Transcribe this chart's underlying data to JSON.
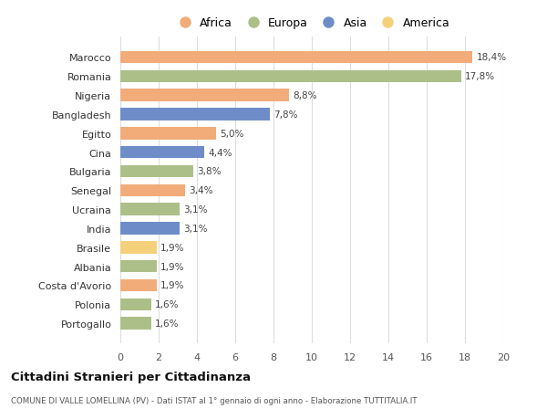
{
  "countries": [
    "Portogallo",
    "Polonia",
    "Costa d'Avorio",
    "Albania",
    "Brasile",
    "India",
    "Ucraina",
    "Senegal",
    "Bulgaria",
    "Cina",
    "Egitto",
    "Bangladesh",
    "Nigeria",
    "Romania",
    "Marocco"
  ],
  "values": [
    1.6,
    1.6,
    1.9,
    1.9,
    1.9,
    3.1,
    3.1,
    3.4,
    3.8,
    4.4,
    5.0,
    7.8,
    8.8,
    17.8,
    18.4
  ],
  "labels": [
    "1,6%",
    "1,6%",
    "1,9%",
    "1,9%",
    "1,9%",
    "3,1%",
    "3,1%",
    "3,4%",
    "3,8%",
    "4,4%",
    "5,0%",
    "7,8%",
    "8,8%",
    "17,8%",
    "18,4%"
  ],
  "continents": [
    "Europa",
    "Europa",
    "Africa",
    "Europa",
    "America",
    "Asia",
    "Europa",
    "Africa",
    "Europa",
    "Asia",
    "Africa",
    "Asia",
    "Africa",
    "Europa",
    "Africa"
  ],
  "continent_colors": {
    "Africa": "#F2AC7A",
    "Europa": "#ADBF88",
    "Asia": "#6E8DC8",
    "America": "#F5D07A"
  },
  "legend_order": [
    "Africa",
    "Europa",
    "Asia",
    "America"
  ],
  "title": "Cittadini Stranieri per Cittadinanza",
  "subtitle": "COMUNE DI VALLE LOMELLINA (PV) - Dati ISTAT al 1° gennaio di ogni anno - Elaborazione TUTTITALIA.IT",
  "xlim": [
    0,
    20
  ],
  "xticks": [
    0,
    2,
    4,
    6,
    8,
    10,
    12,
    14,
    16,
    18,
    20
  ],
  "background_color": "#FFFFFF",
  "grid_color": "#DDDDDD"
}
